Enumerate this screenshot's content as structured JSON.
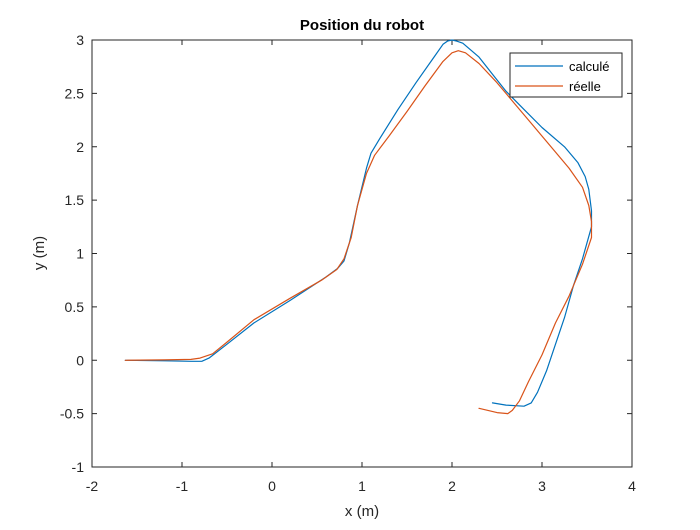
{
  "chart_data": {
    "type": "line",
    "title": "Position du robot",
    "xlabel": "x (m)",
    "ylabel": "y (m)",
    "xlim": [
      -2,
      4
    ],
    "ylim": [
      -1,
      3
    ],
    "xticks": [
      -2,
      -1,
      0,
      1,
      2,
      3,
      4
    ],
    "yticks": [
      -1,
      -0.5,
      0,
      0.5,
      1,
      1.5,
      2,
      2.5,
      3
    ],
    "xtick_labels": [
      "-2",
      "-1",
      "0",
      "1",
      "2",
      "3",
      "4"
    ],
    "ytick_labels": [
      "-1",
      "-0.5",
      "0",
      "0.5",
      "1",
      "1.5",
      "2",
      "2.5",
      "3"
    ],
    "grid": false,
    "legend_position": "top-right",
    "series": [
      {
        "name": "calculé",
        "color": "#0072BD",
        "points": [
          [
            -1.63,
            0.0
          ],
          [
            -1.2,
            -0.005
          ],
          [
            -0.9,
            -0.01
          ],
          [
            -0.78,
            -0.01
          ],
          [
            -0.7,
            0.02
          ],
          [
            -0.5,
            0.15
          ],
          [
            -0.2,
            0.35
          ],
          [
            0.2,
            0.56
          ],
          [
            0.6,
            0.78
          ],
          [
            0.73,
            0.86
          ],
          [
            0.8,
            0.93
          ],
          [
            0.86,
            1.1
          ],
          [
            0.95,
            1.45
          ],
          [
            1.05,
            1.8
          ],
          [
            1.1,
            1.94
          ],
          [
            1.2,
            2.08
          ],
          [
            1.4,
            2.35
          ],
          [
            1.6,
            2.6
          ],
          [
            1.8,
            2.84
          ],
          [
            1.9,
            2.96
          ],
          [
            1.95,
            2.99
          ],
          [
            2.0,
            3.0
          ],
          [
            2.05,
            2.99
          ],
          [
            2.12,
            2.97
          ],
          [
            2.3,
            2.84
          ],
          [
            2.45,
            2.68
          ],
          [
            2.6,
            2.52
          ],
          [
            2.8,
            2.35
          ],
          [
            3.0,
            2.18
          ],
          [
            3.25,
            2.0
          ],
          [
            3.4,
            1.85
          ],
          [
            3.48,
            1.72
          ],
          [
            3.52,
            1.6
          ],
          [
            3.55,
            1.4
          ],
          [
            3.55,
            1.25
          ],
          [
            3.45,
            0.95
          ],
          [
            3.35,
            0.7
          ],
          [
            3.25,
            0.4
          ],
          [
            3.15,
            0.15
          ],
          [
            3.05,
            -0.1
          ],
          [
            2.95,
            -0.3
          ],
          [
            2.88,
            -0.4
          ],
          [
            2.8,
            -0.43
          ],
          [
            2.6,
            -0.42
          ],
          [
            2.45,
            -0.4
          ]
        ]
      },
      {
        "name": "réelle",
        "color": "#D95319",
        "points": [
          [
            -1.63,
            0.0
          ],
          [
            -1.2,
            0.003
          ],
          [
            -0.9,
            0.008
          ],
          [
            -0.8,
            0.02
          ],
          [
            -0.66,
            0.06
          ],
          [
            -0.5,
            0.17
          ],
          [
            -0.2,
            0.38
          ],
          [
            0.2,
            0.58
          ],
          [
            0.55,
            0.75
          ],
          [
            0.72,
            0.85
          ],
          [
            0.8,
            0.95
          ],
          [
            0.88,
            1.15
          ],
          [
            0.95,
            1.45
          ],
          [
            1.05,
            1.75
          ],
          [
            1.14,
            1.92
          ],
          [
            1.3,
            2.1
          ],
          [
            1.5,
            2.33
          ],
          [
            1.7,
            2.57
          ],
          [
            1.9,
            2.8
          ],
          [
            2.0,
            2.88
          ],
          [
            2.07,
            2.9
          ],
          [
            2.15,
            2.88
          ],
          [
            2.3,
            2.78
          ],
          [
            2.5,
            2.6
          ],
          [
            2.7,
            2.4
          ],
          [
            2.9,
            2.2
          ],
          [
            3.1,
            2.0
          ],
          [
            3.3,
            1.8
          ],
          [
            3.45,
            1.62
          ],
          [
            3.52,
            1.45
          ],
          [
            3.55,
            1.3
          ],
          [
            3.55,
            1.15
          ],
          [
            3.45,
            0.9
          ],
          [
            3.3,
            0.6
          ],
          [
            3.15,
            0.35
          ],
          [
            3.0,
            0.05
          ],
          [
            2.85,
            -0.2
          ],
          [
            2.75,
            -0.38
          ],
          [
            2.67,
            -0.47
          ],
          [
            2.62,
            -0.5
          ],
          [
            2.5,
            -0.49
          ],
          [
            2.3,
            -0.45
          ]
        ]
      }
    ]
  }
}
